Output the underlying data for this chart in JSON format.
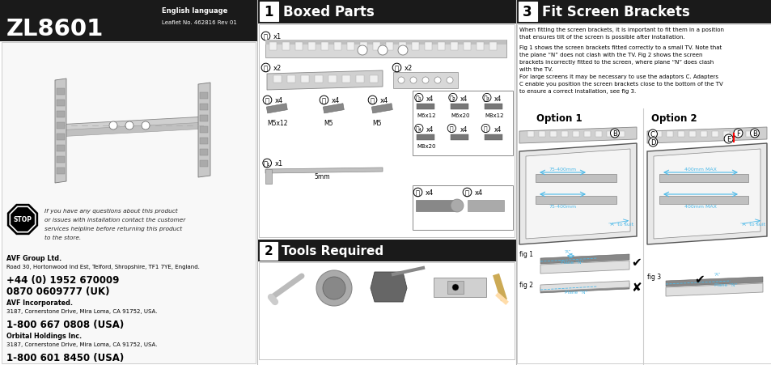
{
  "bg_color": "#ffffff",
  "panel1": {
    "header_bg": "#1a1a1a",
    "header_text_color": "#ffffff",
    "title": "ZL8601",
    "subtitle1": "English language",
    "subtitle2": "Leaflet No. 462816 Rev 01",
    "stop_text": "If you have any questions about this product\nor issues with installation contact the customer\nservices helpline before returning this product\nto the store.",
    "company1_bold": "AVF Group Ltd.",
    "company1_addr": "Road 30, Hortonwood Ind Est, Telford, Shropshire, TF1 7YE, England.",
    "company1_phone1": "+44 (0) 1952 670009",
    "company1_phone2": "0870 0609777 (UK)",
    "company2_bold": "AVF Incorporated.",
    "company2_addr": "3187, Cornerstone Drive, Mira Loma, CA 91752, USA.",
    "company2_phone": "1-800 667 0808 (USA)",
    "company3_bold": "Orbital Holdings Inc.",
    "company3_addr": "3187, Cornerstone Drive, Mira Loma, CA 91752, USA.",
    "company3_phone": "1-800 601 8450 (USA)"
  },
  "panel2": {
    "sec1_num": "1",
    "sec1_title": "Boxed Parts",
    "sec2_num": "2",
    "sec2_title": "Tools Required"
  },
  "panel3": {
    "sec_num": "3",
    "sec_title": "Fit Screen Brackets",
    "body_text1": "When fitting the screen brackets, it is important to fit them in a position",
    "body_text2": "that ensures tilt of the screen is possible after installation.",
    "body_text3": "Fig 1 shows the screen brackets fitted correctly to a small TV. Note that",
    "body_text4": "the plane “N” does not clash with the TV. Fig 2 shows the screen",
    "body_text5": "brackets incorrectly fitted to the screen, where plane “N” does clash",
    "body_text6": "with the TV.",
    "body_text7": "For large screens it may be necessary to use the adaptors C. Adapters",
    "body_text8": "C enable you position the screen brackets close to the bottom of the TV",
    "body_text9": "to ensure a correct installation, see fig 3.",
    "option1": "Option 1",
    "option2": "Option 2",
    "dim_color": "#4ab8e8"
  },
  "col_dividers": [
    318,
    638
  ],
  "header_bg": "#1a1a1a",
  "header_fg": "#ffffff"
}
